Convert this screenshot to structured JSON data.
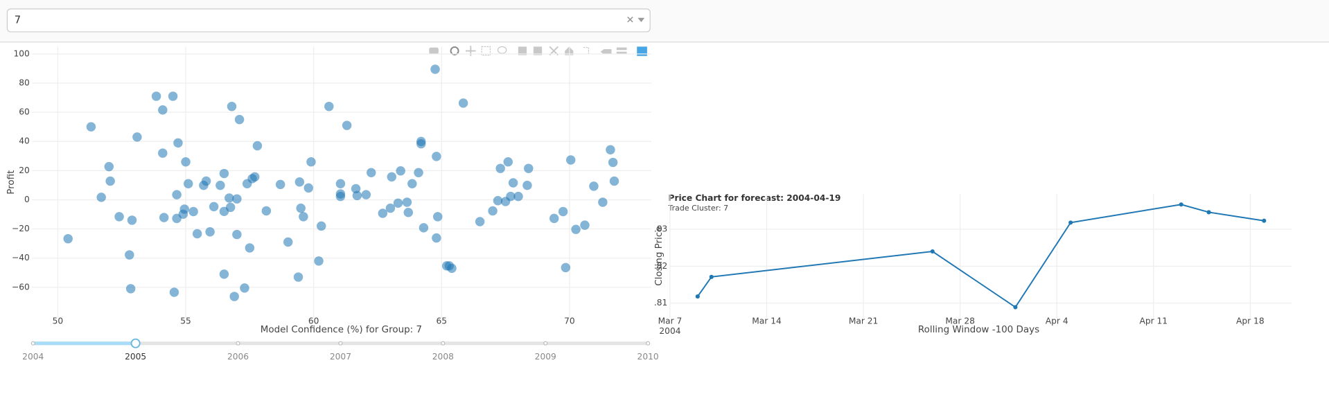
{
  "dropdown": {
    "selected": "7"
  },
  "chart_data": [
    {
      "type": "scatter",
      "x_label": "Model Confidence (%) for Group: 7",
      "y_label": "Profit",
      "color": "#1f77b4",
      "x": [
        50.4,
        51.3,
        51.7,
        52.0,
        52.05,
        52.4,
        52.8,
        52.85,
        52.9,
        53.1,
        53.85,
        54.1,
        54.1,
        54.15,
        54.5,
        54.55,
        54.65,
        54.65,
        54.7,
        54.9,
        54.95,
        55.0,
        55.1,
        55.3,
        55.45,
        55.7,
        55.8,
        55.95,
        56.1,
        56.35,
        56.5,
        56.5,
        56.5,
        56.7,
        56.75,
        56.8,
        56.9,
        57.0,
        57.0,
        57.1,
        57.3,
        57.4,
        57.5,
        57.6,
        57.7,
        57.8,
        58.15,
        58.7,
        59.0,
        59.4,
        59.45,
        59.5,
        59.6,
        59.8,
        59.9,
        60.2,
        60.3,
        60.6,
        61.05,
        61.05,
        61.05,
        61.3,
        61.65,
        61.7,
        62.05,
        62.25,
        62.7,
        63.0,
        63.05,
        63.3,
        63.4,
        63.65,
        63.7,
        63.85,
        64.1,
        64.2,
        64.2,
        64.3,
        64.75,
        64.8,
        64.8,
        64.85,
        65.2,
        65.3,
        65.4,
        65.85,
        66.5,
        67.0,
        67.2,
        67.3,
        67.5,
        67.6,
        67.7,
        67.8,
        68.0,
        68.35,
        68.4,
        69.4,
        69.75,
        69.85,
        70.05,
        70.25,
        70.6,
        70.95,
        71.3,
        71.6,
        71.7,
        71.75
      ],
      "values": [
        -26.7,
        50,
        1.7,
        22.7,
        12.8,
        -11.6,
        -37.8,
        -61,
        -14,
        43,
        71,
        32,
        61.6,
        -12.2,
        71,
        -63.4,
        3.5,
        -12.8,
        39,
        -9.9,
        -6.4,
        26,
        11,
        -8.1,
        -23.3,
        9.9,
        12.8,
        -22,
        -4.7,
        9.9,
        18,
        -51,
        -8,
        1.2,
        -5.2,
        64,
        -66.3,
        -23.8,
        0.6,
        55,
        -60.5,
        11,
        -33,
        14.5,
        15.7,
        37,
        -7.6,
        10.5,
        -29,
        -53,
        12.2,
        -5.8,
        -11.6,
        8.1,
        26,
        -42,
        -18,
        64,
        11,
        2.3,
        4,
        51,
        7.6,
        2.9,
        3.5,
        18.6,
        -9.3,
        -5.8,
        15.7,
        -2.3,
        19.8,
        -1.7,
        -8.7,
        11,
        18.6,
        38.4,
        40,
        -19.2,
        89.5,
        29.7,
        -26.2,
        -11.6,
        -45.3,
        -45.3,
        -47,
        66.3,
        -15,
        -7.6,
        -0.6,
        21.5,
        -1.2,
        26,
        2.3,
        11.6,
        2.3,
        9.9,
        21.5,
        -12.8,
        -8.1,
        -46.5,
        27.3,
        -20.3,
        -17.4,
        9.3,
        -1.7,
        34.3,
        25.6,
        12.8
      ],
      "xlim": [
        49,
        73.2
      ],
      "ylim": [
        -81,
        105
      ],
      "xticks": [
        50,
        55,
        60,
        65,
        70
      ],
      "yticks": [
        {
          "value": -60,
          "label": "−60"
        },
        {
          "value": -40,
          "label": "−40"
        },
        {
          "value": -20,
          "label": "−20"
        },
        0,
        20,
        40,
        60,
        80,
        100
      ],
      "grid": true
    },
    {
      "type": "line",
      "title": "Price Chart for forecast: 2004-04-19",
      "subtitle": "Trade Cluster: 7",
      "x_label": "Rolling Window -100 Days",
      "y_label": "Closing Price",
      "color": "#1f77b4",
      "x": [
        "2004-03-09",
        "2004-03-10",
        "2004-03-26",
        "2004-04-01",
        "2004-04-05",
        "2004-04-13",
        "2004-04-15",
        "2004-04-19"
      ],
      "values": [
        0.8118,
        0.8171,
        0.824,
        0.8089,
        0.8318,
        0.8367,
        0.8346,
        0.8323
      ],
      "xlim": [
        "2004-03-07",
        "2004-04-21"
      ],
      "ylim": [
        0.806,
        0.8395
      ],
      "xticks": [
        {
          "value": "2004-03-07",
          "label": "Mar 7"
        },
        {
          "value": "2004-03-14",
          "label": "Mar 14"
        },
        {
          "value": "2004-03-21",
          "label": "Mar 21"
        },
        {
          "value": "2004-03-28",
          "label": "Mar 28"
        },
        {
          "value": "2004-04-04",
          "label": "Apr 4"
        },
        {
          "value": "2004-04-11",
          "label": "Apr 11"
        },
        {
          "value": "2004-04-18",
          "label": "Apr 18"
        }
      ],
      "xtick_year": "2004",
      "yticks": [
        {
          "value": 0.81,
          "label": ".81"
        },
        {
          "value": 0.82,
          "label": ".82"
        },
        {
          "value": 0.83,
          "label": ".83"
        }
      ],
      "grid": true
    }
  ],
  "slider": {
    "labels": [
      "2004",
      "2005",
      "2006",
      "2007",
      "2008",
      "2009",
      "2010"
    ],
    "active": 1
  }
}
